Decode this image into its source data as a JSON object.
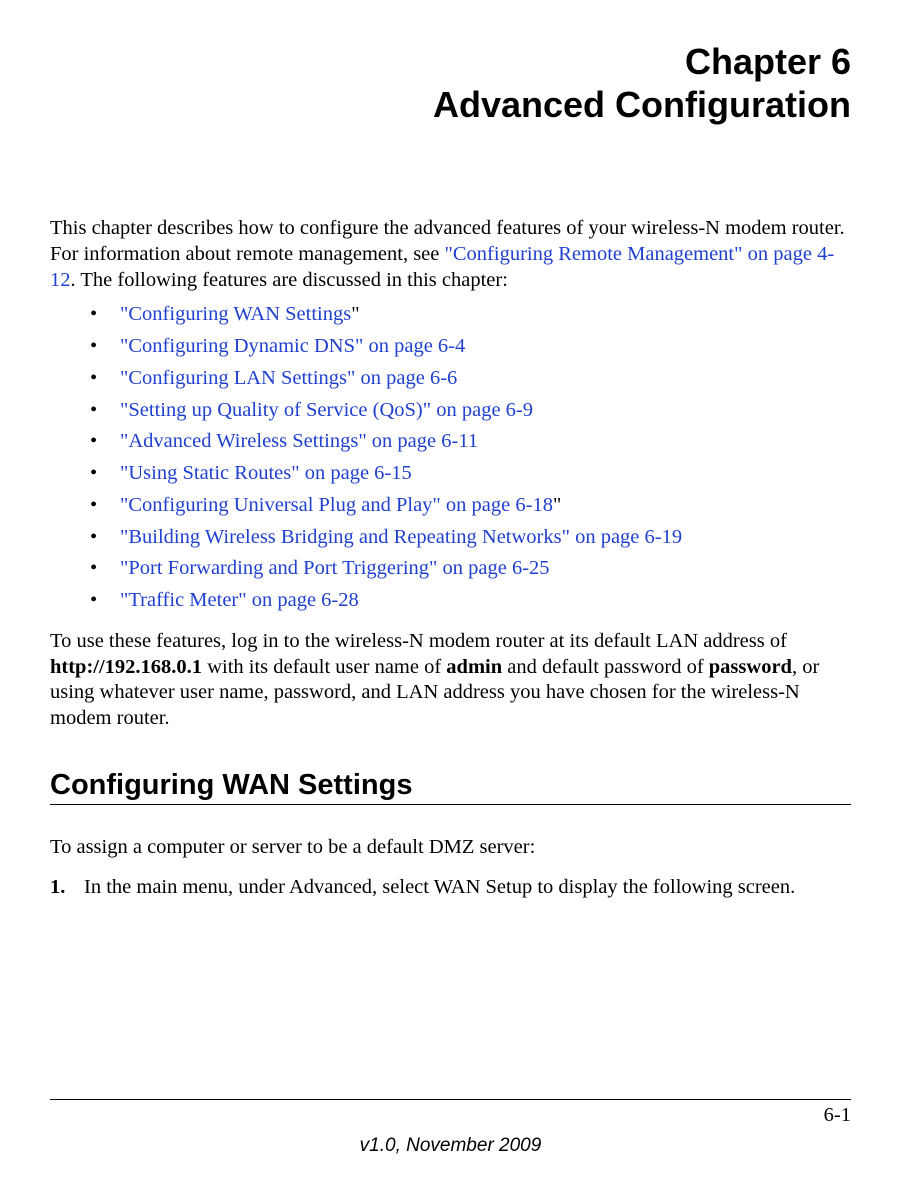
{
  "chapter": {
    "number": "Chapter 6",
    "title": "Advanced Configuration"
  },
  "intro": {
    "pre": "This chapter describes how to configure the advanced features of your wireless-N modem router. For information about remote management, see ",
    "link": "\"Configuring Remote Management\" on page 4-12",
    "post": ". The following features are discussed in this chapter:"
  },
  "toc": [
    {
      "pre": "",
      "link": "\"Configuring WAN Settings",
      "post": "\""
    },
    {
      "pre": "",
      "link": "\"Configuring Dynamic DNS\" on page 6-4",
      "post": ""
    },
    {
      "pre": "",
      "link": "\"Configuring LAN Settings\" on page 6-6",
      "post": ""
    },
    {
      "pre": "",
      "link": "\"Setting up Quality of Service (QoS)\" on page 6-9",
      "post": ""
    },
    {
      "pre": "",
      "link": "\"Advanced Wireless Settings\" on page 6-11",
      "post": ""
    },
    {
      "pre": "",
      "link": "\"Using Static Routes\" on page 6-15",
      "post": ""
    },
    {
      "pre": "",
      "link": "\"Configuring Universal Plug and Play\" on page 6-18",
      "post": "\""
    },
    {
      "pre": "",
      "link": "\"Building Wireless Bridging and Repeating Networks\" on page 6-19",
      "post": ""
    },
    {
      "pre": "",
      "link": "\"Port Forwarding and Port Triggering\" on page 6-25",
      "post": ""
    },
    {
      "pre": "",
      "link": "\"Traffic Meter\" on page 6-28",
      "post": ""
    }
  ],
  "login_para": {
    "p1": "To use these features, log in to the wireless-N modem router at its default LAN address of ",
    "b1": "http://192.168.0.1",
    "p2": " with its default user name of ",
    "b2": "admin",
    "p3": " and default password of ",
    "b3": "password",
    "p4": ", or using whatever user name, password, and LAN address you have chosen for the wireless-N modem router."
  },
  "section_heading": "Configuring WAN Settings",
  "dmz_intro": "To assign a computer or server to be a default DMZ server:",
  "steps": [
    {
      "num": "1.",
      "text": "In the main menu, under Advanced, select WAN Setup to display the following screen."
    }
  ],
  "footer": {
    "page": "6-1",
    "version": "v1.0, November 2009"
  },
  "styles": {
    "link_color": "#2040d0",
    "body_fontsize": 20.5,
    "heading_fontsize": 36,
    "section_fontsize": 29,
    "footer_fontsize": 19
  }
}
